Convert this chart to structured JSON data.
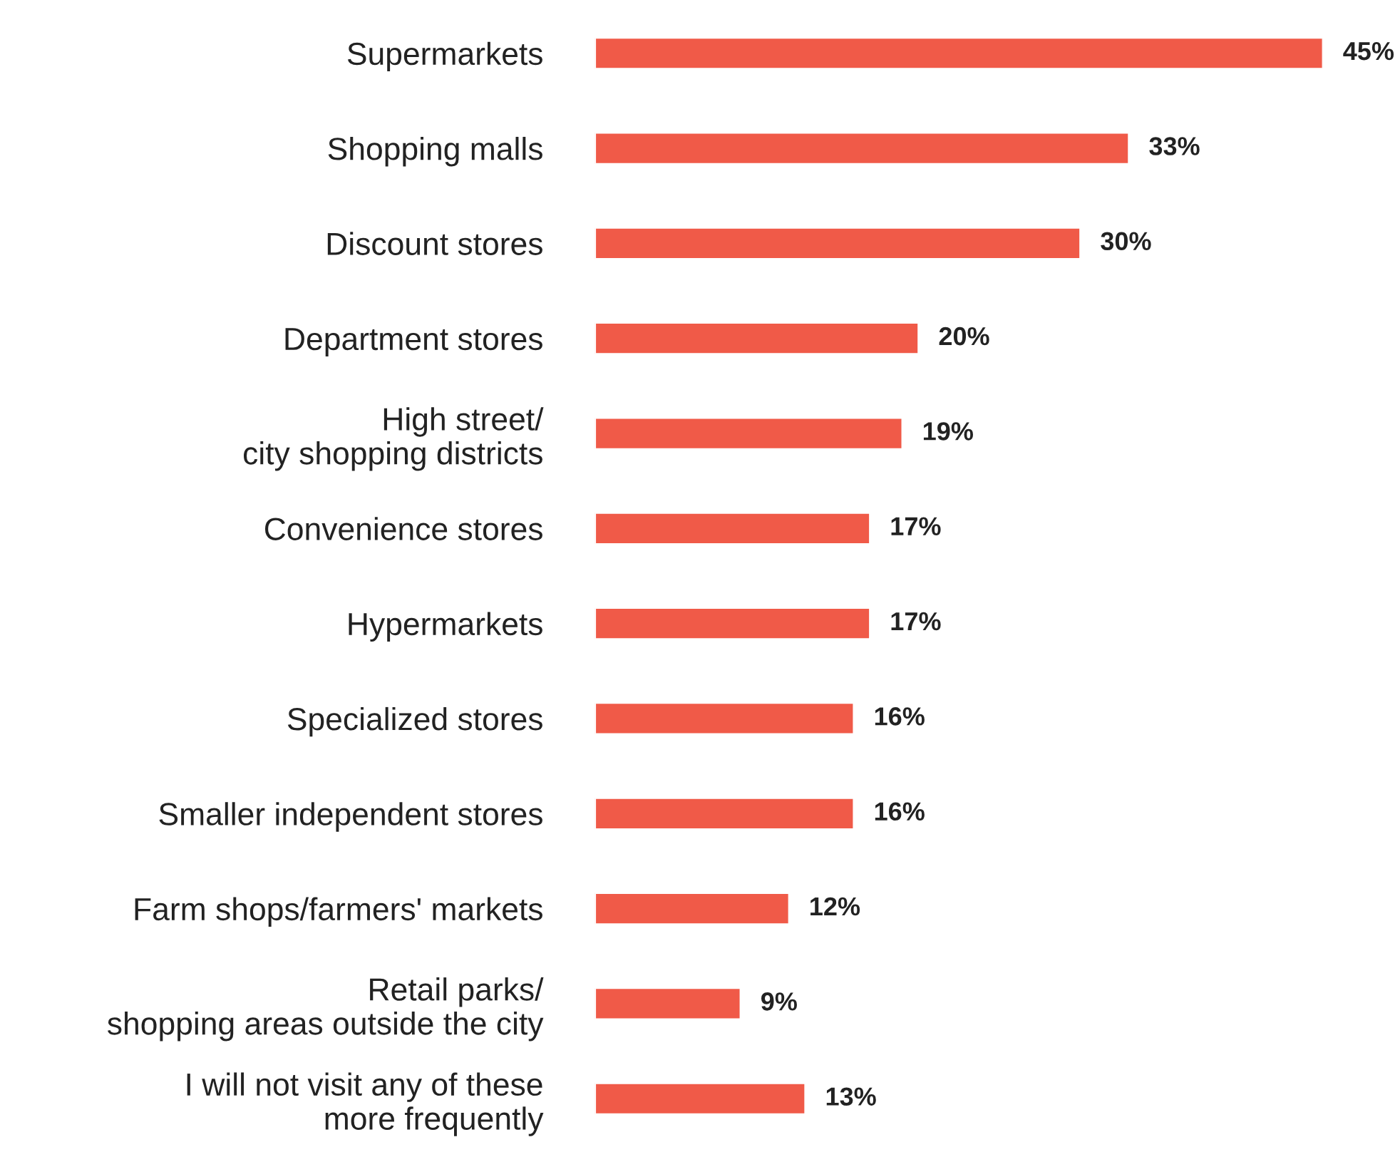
{
  "chart_data": {
    "type": "bar",
    "orientation": "horizontal",
    "categories": [
      "Supermarkets",
      "Shopping malls",
      "Discount stores",
      "Department stores",
      "High street/\ncity shopping districts",
      "Convenience stores",
      "Hypermarkets",
      "Specialized stores",
      "Smaller independent stores",
      "Farm shops/farmers' markets",
      "Retail parks/\nshopping areas outside the city",
      "I will not visit any of these\nmore frequently"
    ],
    "values": [
      45,
      33,
      30,
      20,
      19,
      17,
      17,
      16,
      16,
      12,
      9,
      13
    ],
    "value_labels": [
      "45%",
      "33%",
      "30%",
      "20%",
      "19%",
      "17%",
      "17%",
      "16%",
      "16%",
      "12%",
      "9%",
      "13%"
    ],
    "color": "#f05a48",
    "grid": false,
    "legend": false
  }
}
